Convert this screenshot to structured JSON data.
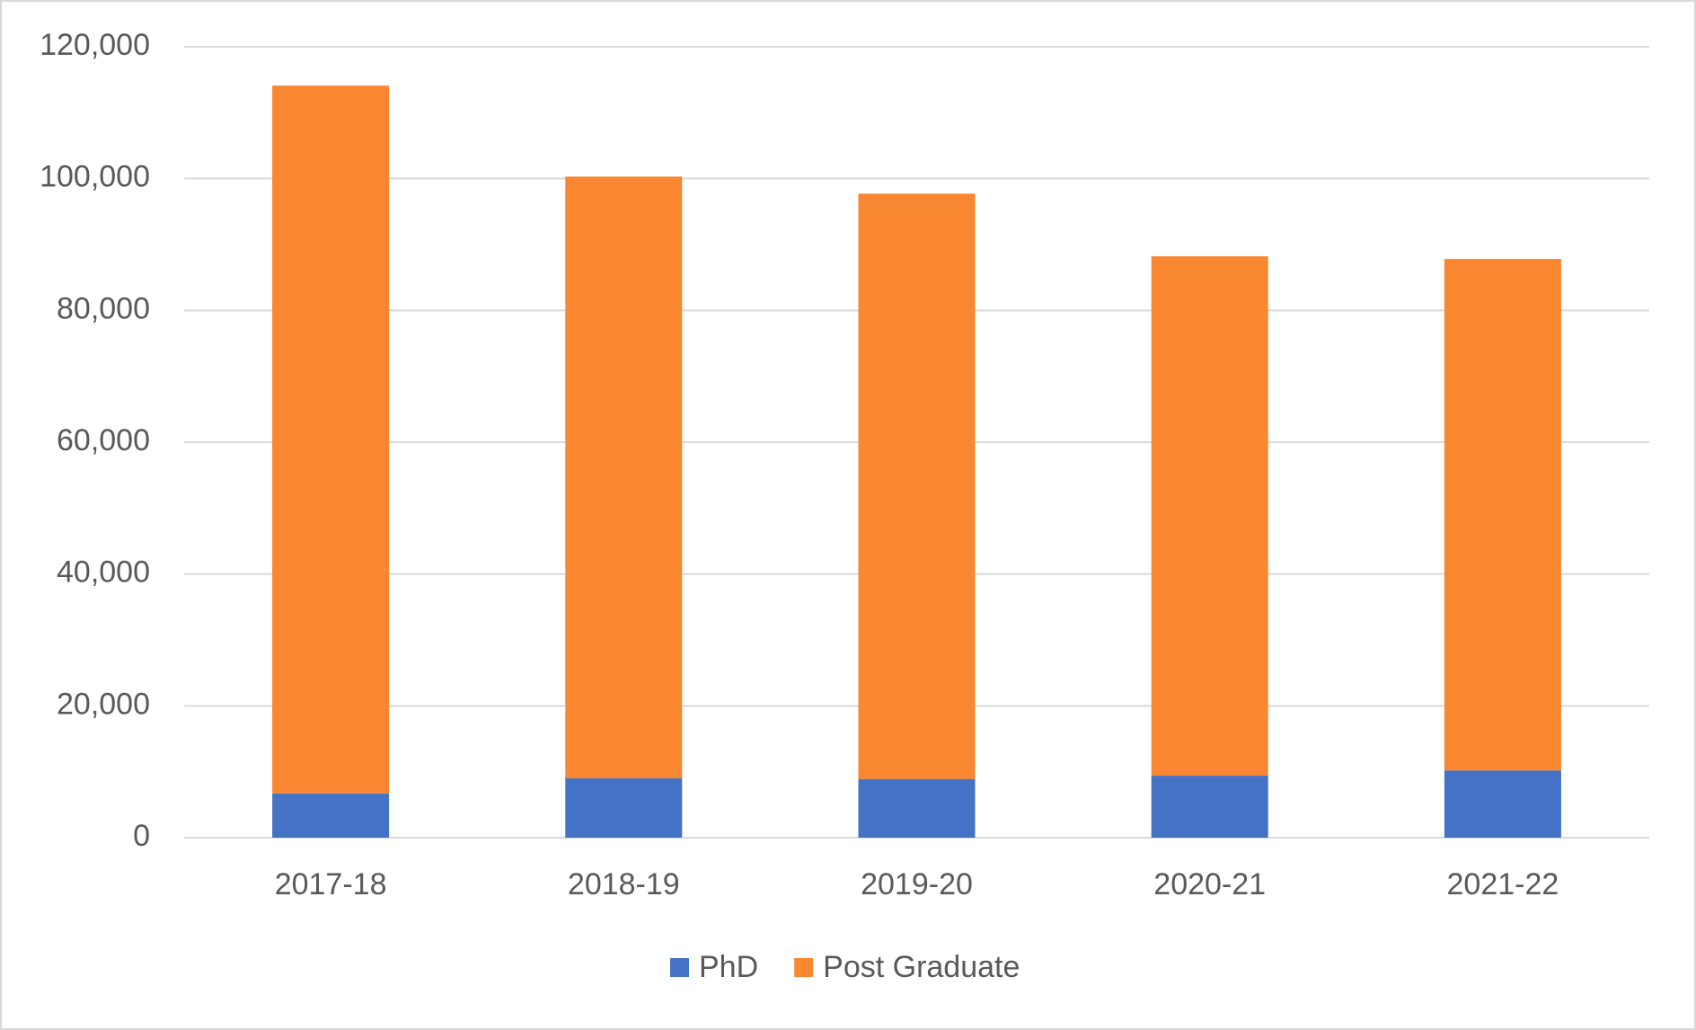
{
  "chart_data": {
    "type": "stacked-bar",
    "categories": [
      "2017-18",
      "2018-19",
      "2019-20",
      "2020-21",
      "2021-22"
    ],
    "series": [
      {
        "name": "PhD",
        "color": "#4472c4",
        "values": [
          6700,
          9000,
          8900,
          9400,
          10200
        ]
      },
      {
        "name": "Post Graduate",
        "color": "#f98731",
        "values": [
          107400,
          91300,
          88800,
          78800,
          77600
        ]
      }
    ],
    "ylim": [
      0,
      120000
    ],
    "yticks": [
      0,
      {
        "value": 20000,
        "label": "20,000"
      },
      {
        "value": 40000,
        "label": "40,000"
      },
      {
        "value": 60000,
        "label": "60,000"
      },
      {
        "value": 80000,
        "label": "80,000"
      },
      {
        "value": 100000,
        "label": "100,000"
      },
      {
        "value": 120000,
        "label": "120,000"
      }
    ],
    "grid": true,
    "legend": "bottom"
  }
}
